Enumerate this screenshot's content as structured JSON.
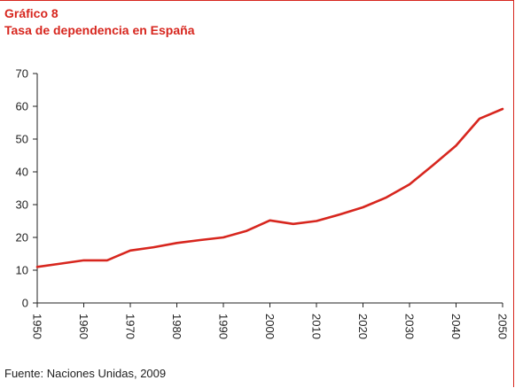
{
  "figure": {
    "label": "Gráfico 8",
    "title": "Tasa de dependencia en España"
  },
  "source": "Fuente: Naciones Unidas, 2009",
  "colors": {
    "accent": "#d7261e",
    "axis": "#222222"
  },
  "chart_data": {
    "type": "line",
    "title": "Tasa de dependencia en España",
    "xlabel": "",
    "ylabel": "",
    "ylim": [
      0,
      70
    ],
    "xlim": [
      1950,
      2050
    ],
    "yticks": [
      0,
      10,
      20,
      30,
      40,
      50,
      60,
      70
    ],
    "xticks": [
      1950,
      1960,
      1970,
      1980,
      1990,
      2000,
      2010,
      2020,
      2030,
      2040,
      2050
    ],
    "grid": false,
    "legend": "none",
    "series": [
      {
        "color": "#d7261e",
        "points": [
          {
            "x": 1950,
            "y": 11
          },
          {
            "x": 1955,
            "y": 12
          },
          {
            "x": 1960,
            "y": 13
          },
          {
            "x": 1965,
            "y": 13
          },
          {
            "x": 1970,
            "y": 16
          },
          {
            "x": 1975,
            "y": 17
          },
          {
            "x": 1980,
            "y": 18.3
          },
          {
            "x": 1985,
            "y": 19.2
          },
          {
            "x": 1990,
            "y": 20
          },
          {
            "x": 1995,
            "y": 22
          },
          {
            "x": 2000,
            "y": 25.2
          },
          {
            "x": 2005,
            "y": 24.1
          },
          {
            "x": 2010,
            "y": 25
          },
          {
            "x": 2015,
            "y": 27
          },
          {
            "x": 2020,
            "y": 29.2
          },
          {
            "x": 2025,
            "y": 32.2
          },
          {
            "x": 2030,
            "y": 36.2
          },
          {
            "x": 2035,
            "y": 42
          },
          {
            "x": 2040,
            "y": 48
          },
          {
            "x": 2045,
            "y": 56.2
          },
          {
            "x": 2050,
            "y": 59.2
          }
        ]
      }
    ]
  }
}
